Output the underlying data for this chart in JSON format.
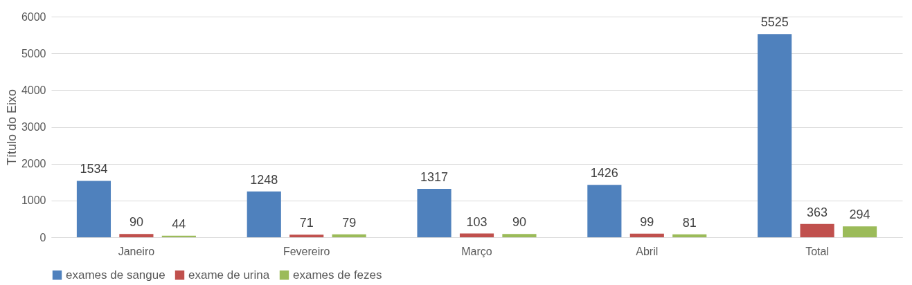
{
  "chart_data": {
    "type": "bar",
    "ylabel": "Título do Eixo",
    "categories": [
      "Janeiro",
      "Fevereiro",
      "Março",
      "Abril",
      "Total"
    ],
    "series": [
      {
        "name": "exames de sangue",
        "color": "#4f81bd",
        "values": [
          1534,
          1248,
          1317,
          1426,
          5525
        ]
      },
      {
        "name": "exame de urina",
        "color": "#c0504d",
        "values": [
          90,
          71,
          103,
          99,
          363
        ]
      },
      {
        "name": "exames de fezes",
        "color": "#9bbb59",
        "values": [
          44,
          79,
          90,
          81,
          294
        ]
      }
    ],
    "ylim": [
      0,
      6000
    ],
    "yticks": [
      0,
      1000,
      2000,
      3000,
      4000,
      5000,
      6000
    ],
    "grid": "y",
    "legend": "bottom",
    "data_labels": true
  }
}
